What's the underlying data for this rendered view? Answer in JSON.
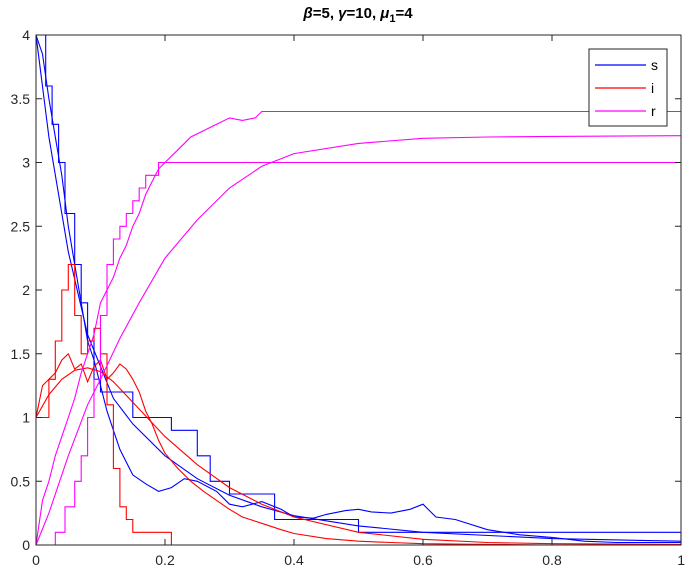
{
  "chart_data": {
    "type": "line",
    "title": {
      "beta_symbol": "β",
      "beta_value": "=5, ",
      "gamma_symbol": "γ",
      "gamma_value": "=10, ",
      "mu_symbol": "μ",
      "mu_subscript": "1",
      "mu_value": "=4"
    },
    "xlabel": "",
    "ylabel": "",
    "xlim": [
      0,
      1
    ],
    "ylim": [
      0,
      4
    ],
    "x_ticks": [
      0,
      0.2,
      0.4,
      0.6,
      0.8,
      1
    ],
    "x_tick_labels": [
      "0",
      "0.2",
      "0.4",
      "0.6",
      "0.8",
      "1"
    ],
    "y_ticks": [
      0,
      0.5,
      1,
      1.5,
      2,
      2.5,
      3,
      3.5,
      4
    ],
    "y_tick_labels": [
      "0",
      "0.5",
      "1",
      "1.5",
      "2",
      "2.5",
      "3",
      "3.5",
      "4"
    ],
    "grid": false,
    "legend": {
      "placement": "top-right",
      "entries": [
        {
          "label": "s",
          "color": "#0000ff"
        },
        {
          "label": "i",
          "color": "#ff0000"
        },
        {
          "label": "r",
          "color": "#ff00ff"
        }
      ]
    },
    "series": [
      {
        "name": "s",
        "kind": "smooth",
        "color": "#0000ff",
        "x": [
          0,
          0.02,
          0.05,
          0.08,
          0.1,
          0.12,
          0.15,
          0.2,
          0.25,
          0.3,
          0.35,
          0.4,
          0.5,
          0.6,
          0.8,
          1
        ],
        "y": [
          4,
          3.2,
          2.3,
          1.65,
          1.4,
          1.15,
          0.95,
          0.7,
          0.52,
          0.39,
          0.3,
          0.23,
          0.15,
          0.1,
          0.05,
          0.03
        ]
      },
      {
        "name": "s",
        "kind": "noisy",
        "color": "#0000ff",
        "x": [
          0,
          0.01,
          0.02,
          0.03,
          0.04,
          0.05,
          0.06,
          0.07,
          0.08,
          0.09,
          0.1,
          0.11,
          0.12,
          0.13,
          0.14,
          0.15,
          0.17,
          0.19,
          0.21,
          0.23,
          0.25,
          0.28,
          0.3,
          0.32,
          0.35,
          0.38,
          0.4,
          0.43,
          0.45,
          0.48,
          0.5,
          0.52,
          0.55,
          0.58,
          0.6,
          0.62,
          0.65,
          0.7,
          0.75,
          0.8,
          0.85,
          0.9,
          1
        ],
        "y": [
          4,
          3.85,
          3.5,
          3.2,
          2.9,
          2.5,
          2.2,
          1.9,
          1.6,
          1.45,
          1.25,
          1.05,
          0.9,
          0.75,
          0.65,
          0.55,
          0.48,
          0.42,
          0.45,
          0.52,
          0.5,
          0.42,
          0.32,
          0.3,
          0.34,
          0.28,
          0.22,
          0.21,
          0.24,
          0.27,
          0.28,
          0.26,
          0.25,
          0.28,
          0.32,
          0.22,
          0.2,
          0.12,
          0.08,
          0.06,
          0.03,
          0.02,
          0.02
        ]
      },
      {
        "name": "s",
        "kind": "step",
        "color": "#0000ff",
        "x": [
          0,
          0.015,
          0.025,
          0.035,
          0.045,
          0.06,
          0.07,
          0.08,
          0.09,
          0.1,
          0.11,
          0.15,
          0.19,
          0.21,
          0.25,
          0.27,
          0.3,
          0.37,
          0.41,
          0.5,
          0.55,
          0.86,
          1
        ],
        "y": [
          4,
          3.6,
          3.3,
          3.0,
          2.6,
          2.2,
          1.9,
          1.6,
          1.3,
          1.2,
          1.2,
          1.0,
          1.0,
          0.9,
          0.7,
          0.5,
          0.4,
          0.2,
          0.2,
          0.1,
          0.1,
          0.1,
          0.0
        ]
      },
      {
        "name": "i",
        "kind": "smooth",
        "color": "#ff0000",
        "x": [
          0,
          0.02,
          0.04,
          0.06,
          0.08,
          0.1,
          0.12,
          0.15,
          0.2,
          0.25,
          0.3,
          0.35,
          0.4,
          0.5,
          0.6,
          0.7,
          0.8,
          1
        ],
        "y": [
          1,
          1.18,
          1.3,
          1.37,
          1.39,
          1.36,
          1.28,
          1.12,
          0.85,
          0.63,
          0.45,
          0.32,
          0.22,
          0.1,
          0.045,
          0.02,
          0.01,
          0.005
        ]
      },
      {
        "name": "i",
        "kind": "noisy",
        "color": "#ff0000",
        "x": [
          0,
          0.01,
          0.02,
          0.03,
          0.04,
          0.05,
          0.06,
          0.07,
          0.08,
          0.09,
          0.1,
          0.11,
          0.12,
          0.13,
          0.14,
          0.15,
          0.16,
          0.17,
          0.18,
          0.19,
          0.2,
          0.22,
          0.24,
          0.26,
          0.28,
          0.3,
          0.32,
          0.35,
          0.38,
          0.4,
          0.45,
          0.5,
          0.55,
          0.6,
          0.7,
          0.8,
          1
        ],
        "y": [
          1.0,
          1.25,
          1.3,
          1.35,
          1.45,
          1.5,
          1.38,
          1.42,
          1.28,
          1.4,
          1.45,
          1.3,
          1.35,
          1.42,
          1.38,
          1.3,
          1.2,
          1.05,
          0.95,
          0.82,
          0.72,
          0.6,
          0.5,
          0.42,
          0.35,
          0.28,
          0.22,
          0.17,
          0.12,
          0.09,
          0.05,
          0.03,
          0.02,
          0.01,
          0.005,
          0.0,
          0.0
        ]
      },
      {
        "name": "i",
        "kind": "step",
        "color": "#ff0000",
        "x": [
          0,
          0.02,
          0.03,
          0.04,
          0.05,
          0.06,
          0.07,
          0.08,
          0.09,
          0.1,
          0.11,
          0.12,
          0.13,
          0.14,
          0.15,
          0.17,
          0.21,
          1
        ],
        "y": [
          1,
          1.3,
          1.6,
          2.0,
          2.2,
          1.8,
          1.5,
          1.6,
          1.7,
          1.5,
          1.1,
          0.6,
          0.3,
          0.2,
          0.1,
          0.1,
          0.0,
          0.0
        ]
      },
      {
        "name": "r",
        "kind": "smooth",
        "color": "#ff00ff",
        "x": [
          0,
          0.02,
          0.05,
          0.08,
          0.1,
          0.13,
          0.16,
          0.2,
          0.25,
          0.3,
          0.35,
          0.4,
          0.5,
          0.6,
          0.7,
          0.8,
          1
        ],
        "y": [
          0,
          0.25,
          0.7,
          1.1,
          1.3,
          1.62,
          1.9,
          2.25,
          2.55,
          2.8,
          2.97,
          3.07,
          3.15,
          3.19,
          3.2,
          3.205,
          3.21
        ]
      },
      {
        "name": "r",
        "kind": "noisy",
        "color": "#ff00ff",
        "x": [
          0,
          0.01,
          0.02,
          0.03,
          0.04,
          0.05,
          0.06,
          0.07,
          0.08,
          0.09,
          0.1,
          0.11,
          0.12,
          0.13,
          0.14,
          0.15,
          0.16,
          0.17,
          0.18,
          0.19,
          0.2,
          0.22,
          0.24,
          0.26,
          0.28,
          0.3,
          0.32,
          0.34,
          0.35,
          0.36,
          0.37,
          0.38,
          0.4,
          0.5,
          0.6,
          0.7,
          0.8,
          1
        ],
        "y": [
          0,
          0.35,
          0.5,
          0.7,
          0.85,
          1.0,
          1.15,
          1.35,
          1.5,
          1.65,
          1.9,
          2.0,
          2.1,
          2.25,
          2.35,
          2.5,
          2.6,
          2.75,
          2.85,
          2.95,
          3.0,
          3.1,
          3.2,
          3.25,
          3.3,
          3.35,
          3.33,
          3.35,
          3.4,
          3.4,
          3.4,
          3.4,
          3.4,
          3.4,
          3.4,
          3.4,
          3.4,
          3.4
        ]
      },
      {
        "name": "r",
        "kind": "step",
        "color": "#ff00ff",
        "x": [
          0,
          0.015,
          0.03,
          0.045,
          0.06,
          0.07,
          0.08,
          0.09,
          0.1,
          0.11,
          0.12,
          0.13,
          0.14,
          0.15,
          0.16,
          0.17,
          0.18,
          0.19,
          0.2,
          0.21,
          0.22,
          1
        ],
        "y": [
          0,
          0.0,
          0.1,
          0.3,
          0.5,
          0.7,
          1.0,
          1.3,
          1.8,
          2.2,
          2.4,
          2.5,
          2.6,
          2.7,
          2.8,
          2.9,
          2.9,
          3.0,
          3.0,
          3.0,
          3.0,
          3.0
        ]
      }
    ]
  }
}
